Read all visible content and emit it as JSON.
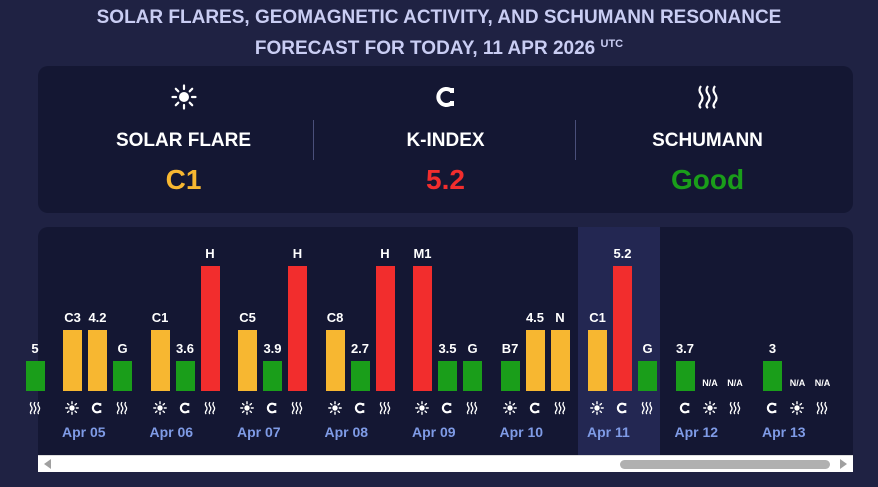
{
  "header": {
    "line1": "SOLAR FLARES, GEOMAGNETIC ACTIVITY, AND SCHUMANN RESONANCE",
    "line2": "FORECAST FOR TODAY, 11 APR 2026",
    "utc": "UTC"
  },
  "summary": [
    {
      "icon": "sun-icon",
      "label": "SOLAR FLARE",
      "value": "C1",
      "color": "#f7b731"
    },
    {
      "icon": "magnet-icon",
      "label": "K-INDEX",
      "value": "5.2",
      "color": "#f22d2d"
    },
    {
      "icon": "waves-icon",
      "label": "SCHUMANN",
      "value": "Good",
      "color": "#1a9e1a"
    }
  ],
  "colors": {
    "yellow": "#f7b731",
    "red": "#f22d2d",
    "green": "#1a9e1a"
  },
  "days": [
    {
      "date": "Apr 05",
      "bars": [
        {
          "type": "flare",
          "label": "C3",
          "level": 0.49,
          "color": "#f7b731"
        },
        {
          "type": "k",
          "label": "4.2",
          "level": 0.49,
          "color": "#f7b731"
        },
        {
          "type": "schumann",
          "label": "G",
          "level": 0.24,
          "color": "#1a9e1a"
        }
      ]
    },
    {
      "date": "Apr 06",
      "bars": [
        {
          "type": "flare",
          "label": "C1",
          "level": 0.49,
          "color": "#f7b731"
        },
        {
          "type": "k",
          "label": "3.6",
          "level": 0.24,
          "color": "#1a9e1a"
        },
        {
          "type": "schumann",
          "label": "H",
          "level": 1.0,
          "color": "#f22d2d"
        }
      ]
    },
    {
      "date": "Apr 07",
      "bars": [
        {
          "type": "flare",
          "label": "C5",
          "level": 0.49,
          "color": "#f7b731"
        },
        {
          "type": "k",
          "label": "3.9",
          "level": 0.24,
          "color": "#1a9e1a"
        },
        {
          "type": "schumann",
          "label": "H",
          "level": 1.0,
          "color": "#f22d2d"
        }
      ]
    },
    {
      "date": "Apr 08",
      "bars": [
        {
          "type": "flare",
          "label": "C8",
          "level": 0.49,
          "color": "#f7b731"
        },
        {
          "type": "k",
          "label": "2.7",
          "level": 0.24,
          "color": "#1a9e1a"
        },
        {
          "type": "schumann",
          "label": "H",
          "level": 1.0,
          "color": "#f22d2d"
        }
      ]
    },
    {
      "date": "Apr 09",
      "bars": [
        {
          "type": "flare",
          "label": "M1",
          "level": 1.0,
          "color": "#f22d2d"
        },
        {
          "type": "k",
          "label": "3.5",
          "level": 0.24,
          "color": "#1a9e1a"
        },
        {
          "type": "schumann",
          "label": "G",
          "level": 0.24,
          "color": "#1a9e1a"
        }
      ]
    },
    {
      "date": "Apr 10",
      "bars": [
        {
          "type": "flare",
          "label": "B7",
          "level": 0.24,
          "color": "#1a9e1a"
        },
        {
          "type": "k",
          "label": "4.5",
          "level": 0.49,
          "color": "#f7b731"
        },
        {
          "type": "schumann",
          "label": "N",
          "level": 0.49,
          "color": "#f7b731"
        }
      ]
    },
    {
      "date": "Apr 11",
      "today": true,
      "bars": [
        {
          "type": "flare",
          "label": "C1",
          "level": 0.49,
          "color": "#f7b731"
        },
        {
          "type": "k",
          "label": "5.2",
          "level": 1.0,
          "color": "#f22d2d"
        },
        {
          "type": "schumann",
          "label": "G",
          "level": 0.24,
          "color": "#1a9e1a"
        }
      ]
    },
    {
      "date": "Apr 12",
      "bars": [
        {
          "type": "k",
          "label": "3.7",
          "level": 0.24,
          "color": "#1a9e1a"
        },
        {
          "type": "flare",
          "label": "N/A",
          "level": 0,
          "color": "#1a9e1a"
        },
        {
          "type": "schumann",
          "label": "N/A",
          "level": 0,
          "color": "#1a9e1a"
        }
      ]
    },
    {
      "date": "Apr 13",
      "bars": [
        {
          "type": "k",
          "label": "3",
          "level": 0.24,
          "color": "#1a9e1a"
        },
        {
          "type": "flare",
          "label": "N/A",
          "level": 0,
          "color": "#1a9e1a"
        },
        {
          "type": "schumann",
          "label": "N/A",
          "level": 0,
          "color": "#1a9e1a"
        }
      ]
    }
  ],
  "partial_first": {
    "label": "5",
    "color": "#1a9e1a",
    "level": 0.24
  }
}
